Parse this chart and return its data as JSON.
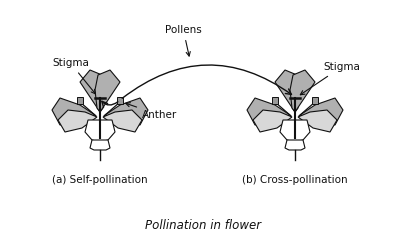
{
  "title": "Pollination in flower",
  "label_a": "(a) Self-pollination",
  "label_b": "(b) Cross-pollination",
  "label_stigma_left": "Stigma",
  "label_stigma_right": "Stigma",
  "label_pollens": "Pollens",
  "label_anther": "Anther",
  "bg_color": "#ffffff",
  "petal_color_dark": "#b0b0b0",
  "petal_color_light": "#d8d8d8",
  "petal_edge_color": "#111111",
  "arrow_color": "#111111",
  "text_color": "#111111",
  "title_style": "italic",
  "font_size": 7.5
}
